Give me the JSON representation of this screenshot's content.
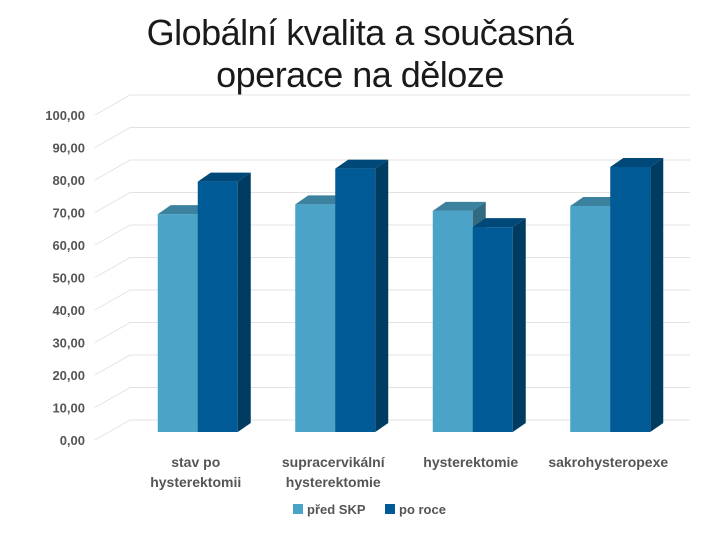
{
  "title_lines": [
    "Globální kvalita a současná",
    "operace na děloze"
  ],
  "chart_data": {
    "type": "bar",
    "title": "Globální kvalita a současná operace na děloze",
    "categories": [
      [
        "stav po",
        "hysterektomii"
      ],
      [
        "supracervikální",
        "hysterektomie"
      ],
      [
        "hysterektomie"
      ],
      [
        "sakrohysteropexe"
      ]
    ],
    "series": [
      {
        "name": "před SKP",
        "values": [
          69.5,
          72.5,
          70.5,
          72.0
        ],
        "color": "#4BA3C7"
      },
      {
        "name": "po roce",
        "values": [
          79.5,
          83.5,
          65.5,
          84.0
        ],
        "color": "#005A96"
      }
    ],
    "ylim": [
      0,
      100
    ],
    "yticks": [
      "0,00",
      "10,00",
      "20,00",
      "30,00",
      "40,00",
      "50,00",
      "60,00",
      "70,00",
      "80,00",
      "90,00",
      "100,00"
    ],
    "grid": true,
    "legend_position": "bottom",
    "three_d": true
  }
}
